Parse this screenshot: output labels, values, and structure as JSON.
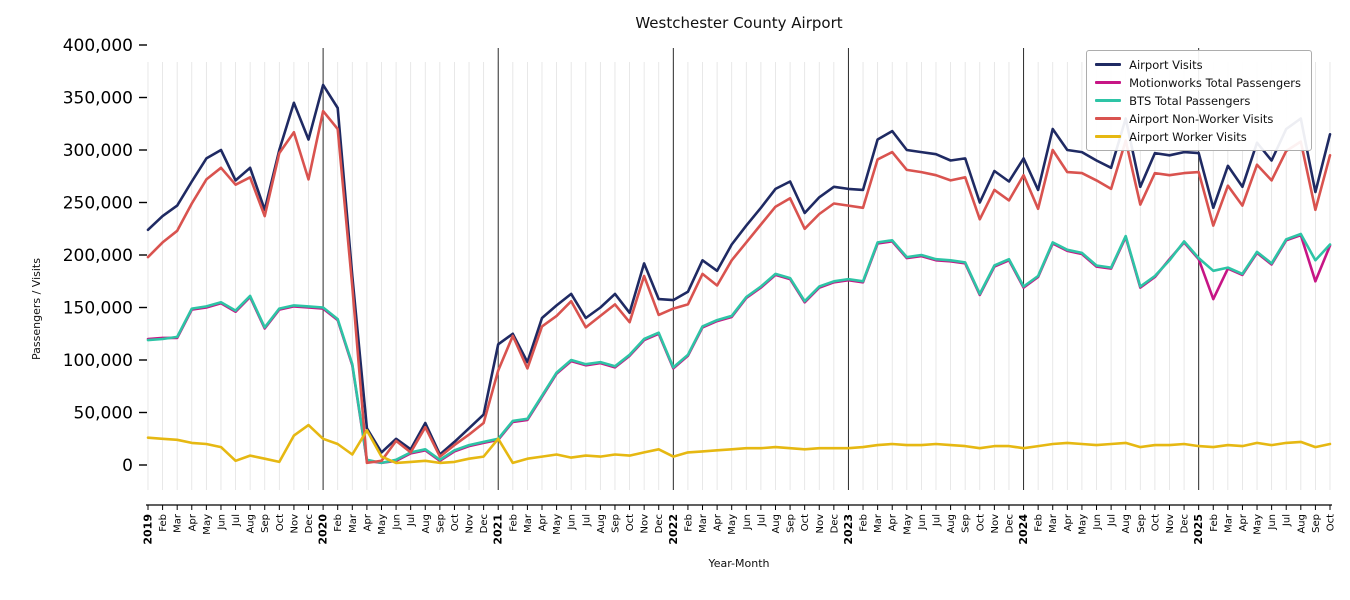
{
  "chart_data": {
    "type": "line",
    "title": "Westchester County Airport",
    "xlabel": "Year-Month",
    "ylabel": "Passengers / Visits",
    "ylim": [
      0,
      400000
    ],
    "yticks": [
      0,
      50000,
      100000,
      150000,
      200000,
      250000,
      300000,
      350000,
      400000
    ],
    "grid": "vertical gridline per month, darker vertical separator at each January",
    "legend_position": "upper right",
    "x": [
      "2019",
      "Feb",
      "Mar",
      "Apr",
      "May",
      "Jun",
      "Jul",
      "Aug",
      "Sep",
      "Oct",
      "Nov",
      "Dec",
      "2020",
      "Feb",
      "Mar",
      "Apr",
      "May",
      "Jun",
      "Jul",
      "Aug",
      "Sep",
      "Oct",
      "Nov",
      "Dec",
      "2021",
      "Feb",
      "Mar",
      "Apr",
      "May",
      "Jun",
      "Jul",
      "Aug",
      "Sep",
      "Oct",
      "Nov",
      "Dec",
      "2022",
      "Feb",
      "Mar",
      "Apr",
      "May",
      "Jun",
      "Jul",
      "Aug",
      "Sep",
      "Oct",
      "Nov",
      "Dec",
      "2023",
      "Feb",
      "Mar",
      "Apr",
      "May",
      "Jun",
      "Jul",
      "Aug",
      "Sep",
      "Oct",
      "Nov",
      "Dec",
      "2024",
      "Feb",
      "Mar",
      "Apr",
      "May",
      "Jun",
      "Jul",
      "Aug",
      "Sep",
      "Oct",
      "Nov",
      "Dec",
      "2025",
      "Feb",
      "Mar",
      "Apr",
      "May",
      "Jun",
      "Jul",
      "Aug",
      "Sep",
      "Oct"
    ],
    "series": [
      {
        "name": "Airport Visits",
        "color": "#1f2a63",
        "values": [
          224000,
          237000,
          247000,
          270000,
          292000,
          300000,
          271000,
          283000,
          243000,
          300000,
          345000,
          310000,
          362000,
          340000,
          180000,
          35000,
          12000,
          25000,
          15000,
          40000,
          10000,
          22000,
          35000,
          48000,
          115000,
          125000,
          98000,
          140000,
          152000,
          163000,
          140000,
          150000,
          163000,
          145000,
          192000,
          158000,
          157000,
          165000,
          195000,
          185000,
          210000,
          228000,
          245000,
          263000,
          270000,
          240000,
          255000,
          265000,
          263000,
          262000,
          310000,
          318000,
          300000,
          298000,
          296000,
          290000,
          292000,
          250000,
          280000,
          270000,
          292000,
          262000,
          320000,
          300000,
          298000,
          290000,
          283000,
          330000,
          265000,
          297000,
          295000,
          298000,
          297000,
          245000,
          285000,
          265000,
          307000,
          290000,
          320000,
          330000,
          260000,
          315000
        ]
      },
      {
        "name": "Motionworks Total Passengers",
        "color": "#c71585",
        "values": [
          120000,
          121000,
          121000,
          148000,
          150000,
          154000,
          146000,
          160000,
          130000,
          148000,
          151000,
          150000,
          149000,
          138000,
          95000,
          4000,
          2000,
          4000,
          11000,
          14000,
          4000,
          13000,
          18000,
          21000,
          24000,
          41000,
          43000,
          65000,
          87000,
          99000,
          95000,
          97000,
          93000,
          104000,
          119000,
          125000,
          92000,
          104000,
          131000,
          137000,
          141000,
          159000,
          169000,
          181000,
          177000,
          155000,
          169000,
          174000,
          176000,
          174000,
          211000,
          213000,
          197000,
          199000,
          195000,
          194000,
          192000,
          162000,
          189000,
          195000,
          169000,
          179000,
          211000,
          204000,
          201000,
          189000,
          187000,
          217000,
          169000,
          179000,
          196000,
          212000,
          196000,
          158000,
          187000,
          181000,
          202000,
          191000,
          214000,
          219000,
          175000,
          209000
        ]
      },
      {
        "name": "BTS Total Passengers",
        "color": "#2ec4a6",
        "values": [
          119000,
          120000,
          122000,
          149000,
          151000,
          155000,
          147000,
          161000,
          131000,
          149000,
          152000,
          151000,
          150000,
          139000,
          96000,
          5000,
          2000,
          5000,
          12000,
          15000,
          5000,
          14000,
          19000,
          22000,
          25000,
          42000,
          44000,
          66000,
          88000,
          100000,
          96000,
          98000,
          94000,
          105000,
          120000,
          126000,
          93000,
          105000,
          132000,
          138000,
          142000,
          160000,
          170000,
          182000,
          178000,
          156000,
          170000,
          175000,
          177000,
          175000,
          212000,
          214000,
          198000,
          200000,
          196000,
          195000,
          193000,
          163000,
          190000,
          196000,
          170000,
          180000,
          212000,
          205000,
          202000,
          190000,
          188000,
          218000,
          170000,
          180000,
          195000,
          213000,
          197000,
          185000,
          188000,
          182000,
          203000,
          192000,
          215000,
          220000,
          195000,
          210000
        ]
      },
      {
        "name": "Airport Non-Worker Visits",
        "color": "#d9534f",
        "values": [
          198000,
          212000,
          223000,
          249000,
          272000,
          283000,
          267000,
          274000,
          237000,
          297000,
          317000,
          272000,
          337000,
          320000,
          170000,
          2000,
          4000,
          23000,
          12000,
          36000,
          8000,
          19000,
          29000,
          40000,
          90000,
          123000,
          92000,
          132000,
          142000,
          156000,
          131000,
          142000,
          153000,
          136000,
          180000,
          143000,
          149000,
          153000,
          182000,
          171000,
          195000,
          212000,
          229000,
          246000,
          254000,
          225000,
          239000,
          249000,
          247000,
          245000,
          291000,
          298000,
          281000,
          279000,
          276000,
          271000,
          274000,
          234000,
          262000,
          252000,
          276000,
          244000,
          300000,
          279000,
          278000,
          271000,
          263000,
          309000,
          248000,
          278000,
          276000,
          278000,
          279000,
          228000,
          266000,
          247000,
          286000,
          271000,
          299000,
          308000,
          243000,
          295000
        ]
      },
      {
        "name": "Airport Worker Visits",
        "color": "#e6b812",
        "values": [
          26000,
          25000,
          24000,
          21000,
          20000,
          17000,
          4000,
          9000,
          6000,
          3000,
          28000,
          38000,
          25000,
          20000,
          10000,
          33000,
          8000,
          2000,
          3000,
          4000,
          2000,
          3000,
          6000,
          8000,
          25000,
          2000,
          6000,
          8000,
          10000,
          7000,
          9000,
          8000,
          10000,
          9000,
          12000,
          15000,
          8000,
          12000,
          13000,
          14000,
          15000,
          16000,
          16000,
          17000,
          16000,
          15000,
          16000,
          16000,
          16000,
          17000,
          19000,
          20000,
          19000,
          19000,
          20000,
          19000,
          18000,
          16000,
          18000,
          18000,
          16000,
          18000,
          20000,
          21000,
          20000,
          19000,
          20000,
          21000,
          17000,
          19000,
          19000,
          20000,
          18000,
          17000,
          19000,
          18000,
          21000,
          19000,
          21000,
          22000,
          17000,
          20000
        ]
      }
    ]
  }
}
